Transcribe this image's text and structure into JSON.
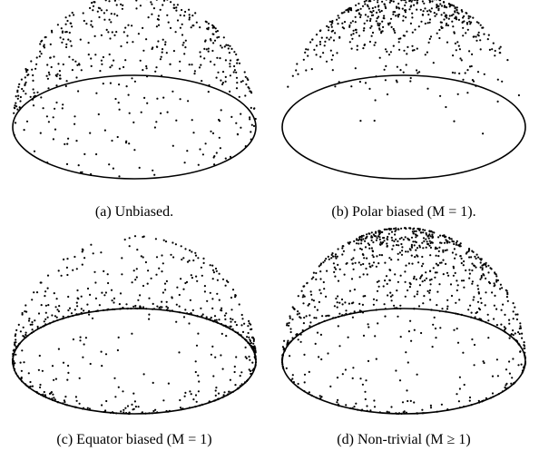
{
  "panels": [
    {
      "caption": "(a) Unbiased."
    },
    {
      "caption": "(b) Polar biased (M = 1)."
    },
    {
      "caption": "(c) Equator biased (M = 1)"
    },
    {
      "caption": "(d) Non-trivial (M ≥ 1)"
    }
  ]
}
